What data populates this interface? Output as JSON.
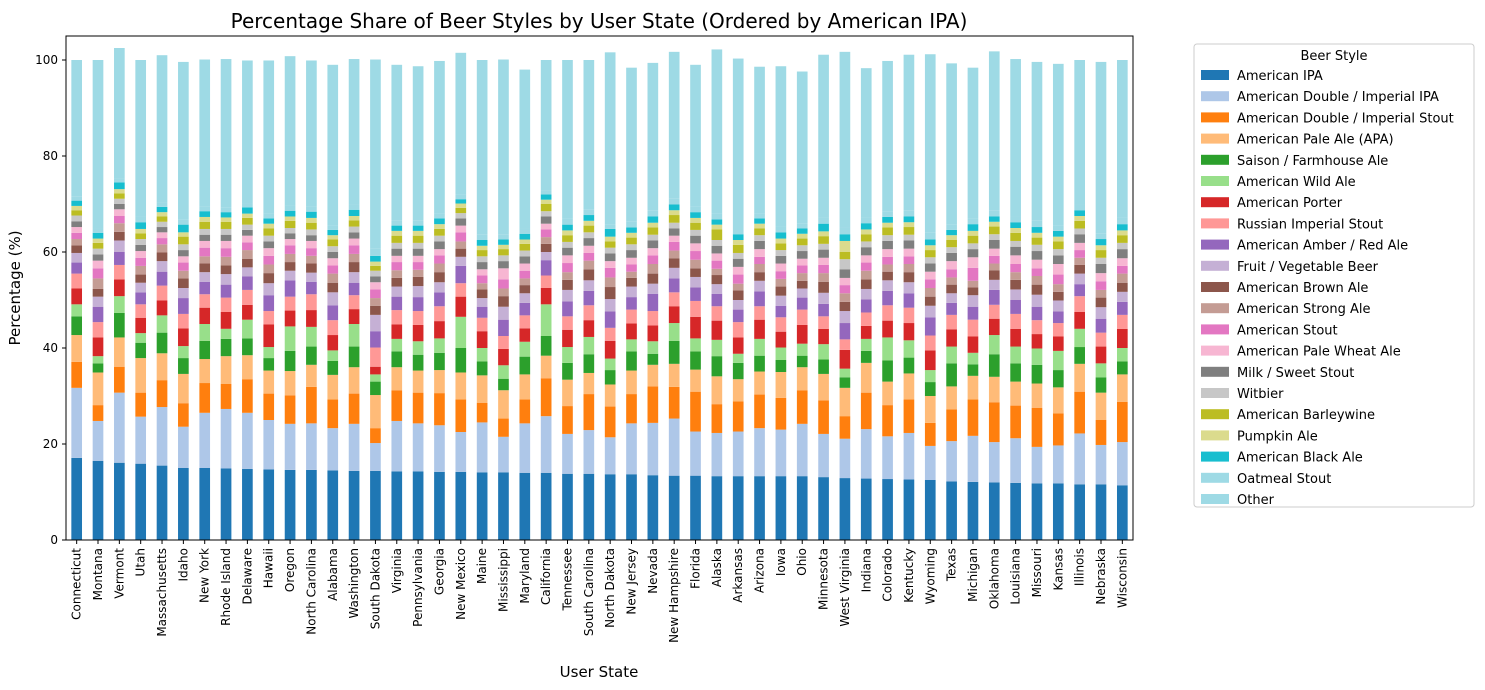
{
  "chart_data": {
    "type": "bar",
    "stacked": true,
    "title": "Percentage Share of Beer Styles by User State (Ordered by American IPA)",
    "xlabel": "User State",
    "ylabel": "Percentage (%)",
    "ylim": [
      0,
      105
    ],
    "yticks": [
      0,
      20,
      40,
      60,
      80,
      100
    ],
    "grid": false,
    "legend": {
      "title": "Beer Style",
      "placement": "outside-right"
    },
    "categories": [
      "Connecticut",
      "Montana",
      "Vermont",
      "Utah",
      "Massachusetts",
      "Idaho",
      "New York",
      "Rhode Island",
      "Delaware",
      "Hawaii",
      "Oregon",
      "North Carolina",
      "Alabama",
      "Washington",
      "South Dakota",
      "Virginia",
      "Pennsylvania",
      "Georgia",
      "New Mexico",
      "Maine",
      "Mississippi",
      "Maryland",
      "California",
      "Tennessee",
      "South Carolina",
      "North Dakota",
      "New Jersey",
      "Nevada",
      "New Hampshire",
      "Florida",
      "Alaska",
      "Arkansas",
      "Arizona",
      "Iowa",
      "Ohio",
      "Minnesota",
      "West Virginia",
      "Indiana",
      "Colorado",
      "Kentucky",
      "Wyoming",
      "Texas",
      "Michigan",
      "Oklahoma",
      "Louisiana",
      "Missouri",
      "Kansas",
      "Illinois",
      "Nebraska",
      "Wisconsin"
    ],
    "series": [
      {
        "name": "American IPA",
        "color": "#1f77b4",
        "values": [
          17.1,
          16.5,
          16.1,
          15.9,
          15.5,
          15.0,
          15.0,
          14.9,
          14.8,
          14.7,
          14.6,
          14.6,
          14.5,
          14.4,
          14.4,
          14.3,
          14.3,
          14.2,
          14.2,
          14.1,
          14.1,
          14.0,
          14.0,
          13.8,
          13.8,
          13.7,
          13.7,
          13.5,
          13.4,
          13.4,
          13.3,
          13.3,
          13.3,
          13.3,
          13.3,
          13.1,
          12.9,
          12.8,
          12.7,
          12.6,
          12.5,
          12.2,
          12.1,
          12.0,
          11.9,
          11.8,
          11.8,
          11.6,
          11.6,
          11.4
        ]
      },
      {
        "name": "American Double / Imperial IPA",
        "color": "#aec7e8",
        "values": [
          14.6,
          8.3,
          14.6,
          9.8,
          12.2,
          8.6,
          11.5,
          12.4,
          11.7,
          10.3,
          9.6,
          9.7,
          8.8,
          9.8,
          5.8,
          10.5,
          10.0,
          9.7,
          8.3,
          10.4,
          7.4,
          10.3,
          11.8,
          8.3,
          9.1,
          7.7,
          10.6,
          10.9,
          11.9,
          9.2,
          9.0,
          9.3,
          10.0,
          9.7,
          10.9,
          9.0,
          8.2,
          10.3,
          8.9,
          9.7,
          7.1,
          8.4,
          9.6,
          8.4,
          9.3,
          7.6,
          7.9,
          10.6,
          8.2,
          9.0
        ]
      },
      {
        "name": "American Double / Imperial Stout",
        "color": "#ff7f0e",
        "values": [
          5.4,
          3.3,
          5.4,
          5.0,
          5.6,
          4.9,
          6.2,
          5.2,
          7.0,
          5.5,
          5.9,
          7.6,
          6.0,
          6.3,
          3.1,
          6.4,
          6.4,
          6.7,
          6.8,
          4.1,
          3.8,
          5.0,
          7.9,
          5.8,
          7.5,
          6.4,
          6.1,
          7.6,
          6.6,
          8.3,
          6.0,
          6.3,
          7.0,
          6.6,
          7.0,
          7.0,
          4.7,
          7.6,
          6.5,
          7.0,
          4.8,
          6.6,
          7.6,
          8.3,
          6.8,
          8.1,
          6.7,
          8.7,
          5.2,
          8.4
        ]
      },
      {
        "name": "American Pale Ale (APA)",
        "color": "#ffbb78",
        "values": [
          5.6,
          6.8,
          6.1,
          7.2,
          5.6,
          6.1,
          5.0,
          5.8,
          5.0,
          4.8,
          5.1,
          4.6,
          5.1,
          5.5,
          6.9,
          4.8,
          4.6,
          4.8,
          5.6,
          5.7,
          5.9,
          5.2,
          4.7,
          5.5,
          4.4,
          4.6,
          4.9,
          4.5,
          4.8,
          4.6,
          5.8,
          4.6,
          4.8,
          5.4,
          4.8,
          5.5,
          5.9,
          6.2,
          4.9,
          5.4,
          5.6,
          4.8,
          4.9,
          5.3,
          5.0,
          5.1,
          5.4,
          5.8,
          5.7,
          5.7
        ]
      },
      {
        "name": "Saison / Farmhouse Ale",
        "color": "#2ca02c",
        "values": [
          3.9,
          1.9,
          5.1,
          3.2,
          4.3,
          3.3,
          3.8,
          3.6,
          3.5,
          2.6,
          4.2,
          3.8,
          2.9,
          4.3,
          2.8,
          3.3,
          3.3,
          3.6,
          5.1,
          2.9,
          2.4,
          3.7,
          4.1,
          3.5,
          3.9,
          3.0,
          4.0,
          2.3,
          4.8,
          3.8,
          4.2,
          3.4,
          3.3,
          2.5,
          2.4,
          3.0,
          2.2,
          2.5,
          4.4,
          3.3,
          2.9,
          4.8,
          2.4,
          4.7,
          3.8,
          3.9,
          3.6,
          3.5,
          3.2,
          2.7
        ]
      },
      {
        "name": "American Wild Ale",
        "color": "#98df8a",
        "values": [
          2.5,
          1.5,
          3.5,
          2.0,
          3.6,
          2.5,
          3.5,
          2.1,
          3.9,
          2.3,
          5.1,
          4.1,
          2.2,
          4.7,
          1.5,
          2.6,
          2.8,
          3.0,
          6.5,
          2.8,
          2.8,
          3.1,
          6.6,
          3.3,
          3.6,
          2.4,
          2.5,
          2.6,
          3.7,
          2.7,
          3.4,
          1.9,
          3.5,
          2.6,
          2.5,
          3.2,
          1.8,
          2.5,
          4.8,
          3.6,
          2.5,
          3.5,
          2.4,
          4.0,
          3.5,
          3.4,
          4.0,
          3.8,
          2.9,
          2.8
        ]
      },
      {
        "name": "American Porter",
        "color": "#d62728",
        "values": [
          3.3,
          3.9,
          3.5,
          3.2,
          3.1,
          3.7,
          3.4,
          3.5,
          3.1,
          4.7,
          3.3,
          3.5,
          3.2,
          3.1,
          1.6,
          3.0,
          3.4,
          3.6,
          4.2,
          3.5,
          3.4,
          2.8,
          3.4,
          3.6,
          3.5,
          3.7,
          3.3,
          3.3,
          3.5,
          4.5,
          4.0,
          3.4,
          4.0,
          3.3,
          3.9,
          3.2,
          3.9,
          2.7,
          3.5,
          3.6,
          4.1,
          3.6,
          3.4,
          3.4,
          3.7,
          3.0,
          3.0,
          3.5,
          3.5,
          4.0
        ]
      },
      {
        "name": "Russian Imperial Stout",
        "color": "#ff9896",
        "values": [
          3.1,
          3.2,
          3.0,
          2.8,
          3.1,
          3.0,
          2.8,
          3.0,
          3.1,
          2.8,
          2.9,
          3.3,
          3.1,
          2.9,
          4.0,
          3.0,
          2.9,
          3.1,
          2.8,
          2.8,
          2.7,
          2.7,
          2.6,
          2.8,
          3.1,
          2.7,
          2.9,
          3.0,
          2.9,
          3.3,
          3.0,
          3.2,
          2.8,
          3.0,
          3.2,
          2.6,
          2.2,
          2.8,
          3.2,
          3.2,
          3.1,
          3.0,
          3.5,
          2.9,
          3.1,
          2.9,
          2.8,
          3.3,
          2.9,
          2.9
        ]
      },
      {
        "name": "American Amber / Red Ale",
        "color": "#9467bd",
        "values": [
          2.3,
          3.2,
          2.7,
          2.5,
          2.9,
          3.3,
          2.6,
          2.7,
          2.8,
          3.3,
          3.4,
          2.6,
          3.1,
          2.6,
          3.4,
          2.8,
          2.9,
          2.9,
          3.6,
          2.3,
          3.4,
          2.6,
          3.2,
          3.1,
          3.0,
          3.4,
          2.6,
          3.6,
          2.9,
          2.8,
          2.6,
          2.6,
          3.1,
          2.4,
          2.5,
          2.6,
          3.4,
          2.7,
          3.0,
          3.0,
          3.8,
          2.5,
          2.7,
          3.1,
          2.9,
          2.8,
          2.4,
          2.5,
          2.9,
          2.7
        ]
      },
      {
        "name": "Fruit / Vegetable Beer",
        "color": "#c5b0d5",
        "values": [
          2.0,
          2.1,
          2.4,
          2.0,
          2.2,
          2.1,
          2.0,
          2.2,
          1.9,
          2.5,
          2.0,
          1.9,
          2.7,
          2.2,
          3.4,
          2.1,
          2.3,
          2.1,
          1.9,
          1.8,
          2.7,
          2.0,
          1.7,
          2.4,
          2.2,
          2.6,
          2.2,
          2.1,
          2.2,
          2.2,
          2.0,
          2.0,
          2.2,
          2.1,
          1.9,
          2.3,
          2.5,
          2.2,
          2.2,
          2.3,
          2.4,
          2.0,
          2.4,
          2.1,
          2.2,
          2.5,
          2.3,
          2.2,
          2.4,
          2.1
        ]
      },
      {
        "name": "American Brown Ale",
        "color": "#8c564b",
        "values": [
          1.6,
          1.6,
          1.8,
          1.7,
          1.8,
          2.0,
          1.8,
          1.8,
          1.8,
          2.1,
          1.8,
          1.9,
          2.0,
          2.1,
          1.9,
          1.8,
          1.9,
          2.1,
          1.7,
          1.8,
          2.2,
          1.7,
          1.7,
          2.1,
          2.3,
          2.5,
          1.8,
          2.1,
          2.0,
          1.8,
          1.9,
          2.0,
          1.8,
          1.9,
          1.6,
          2.3,
          1.9,
          2.0,
          1.8,
          2.1,
          1.9,
          1.8,
          1.6,
          2.0,
          2.0,
          2.1,
          1.8,
          1.8,
          2.0,
          1.9
        ]
      },
      {
        "name": "American Strong Ale",
        "color": "#c49c94",
        "values": [
          1.3,
          2.2,
          1.8,
          1.8,
          1.7,
          1.6,
          1.5,
          1.8,
          1.8,
          1.8,
          1.7,
          1.6,
          1.9,
          1.7,
          1.6,
          1.6,
          1.5,
          1.8,
          1.5,
          1.3,
          1.6,
          1.4,
          1.4,
          1.6,
          1.8,
          2.0,
          1.3,
          2.0,
          1.6,
          1.8,
          1.3,
          1.4,
          1.7,
          1.6,
          1.6,
          1.8,
          1.8,
          1.8,
          1.5,
          1.7,
          1.8,
          1.5,
          1.4,
          1.4,
          1.6,
          1.8,
          1.6,
          1.5,
          1.6,
          1.9
        ]
      },
      {
        "name": "American Stout",
        "color": "#e377c2",
        "values": [
          1.3,
          2.1,
          1.5,
          1.7,
          1.3,
          1.7,
          1.8,
          1.8,
          1.6,
          1.8,
          1.8,
          1.6,
          1.7,
          1.8,
          1.8,
          1.7,
          1.6,
          1.7,
          1.9,
          1.6,
          1.9,
          1.6,
          1.6,
          1.9,
          1.6,
          2.0,
          1.5,
          1.8,
          1.8,
          1.8,
          1.7,
          1.9,
          1.5,
          1.6,
          1.6,
          1.7,
          1.7,
          1.7,
          1.6,
          1.6,
          1.8,
          1.7,
          2.7,
          1.6,
          1.7,
          1.6,
          2.0,
          1.6,
          1.8,
          1.6
        ]
      },
      {
        "name": "American Pale Wheat Ale",
        "color": "#f7b6d2",
        "values": [
          1.2,
          1.6,
          1.4,
          1.4,
          1.2,
          1.3,
          1.4,
          1.5,
          1.4,
          1.6,
          1.3,
          1.5,
          1.5,
          1.4,
          1.5,
          1.3,
          1.3,
          1.3,
          1.4,
          1.3,
          2.3,
          1.5,
          1.2,
          1.6,
          1.5,
          1.4,
          1.4,
          1.5,
          1.3,
          1.6,
          1.5,
          1.6,
          1.6,
          1.6,
          1.4,
          1.5,
          1.5,
          1.5,
          1.6,
          1.6,
          1.6,
          1.7,
          2.2,
          1.5,
          1.8,
          1.8,
          2.2,
          1.5,
          1.7,
          1.6
        ]
      },
      {
        "name": "Milk / Sweet Stout",
        "color": "#7f7f7f",
        "values": [
          1.2,
          1.3,
          1.1,
          1.3,
          1.1,
          1.3,
          1.3,
          1.3,
          1.2,
          1.4,
          1.2,
          1.2,
          1.3,
          1.3,
          1.2,
          1.5,
          1.5,
          1.6,
          1.5,
          1.5,
          1.5,
          1.5,
          1.5,
          1.6,
          1.6,
          1.6,
          1.6,
          1.6,
          1.5,
          1.6,
          1.6,
          1.7,
          1.7,
          1.6,
          1.6,
          1.7,
          1.8,
          1.7,
          1.7,
          1.7,
          1.7,
          1.7,
          1.7,
          1.8,
          1.8,
          1.8,
          1.8,
          1.8,
          1.9,
          1.9
        ]
      },
      {
        "name": "Witbier",
        "color": "#c7c7c7",
        "values": [
          1.2,
          1.2,
          1.1,
          1.2,
          1.1,
          1.2,
          1.2,
          1.2,
          1.1,
          1.2,
          1.1,
          1.2,
          1.2,
          1.2,
          1.2,
          1.2,
          1.2,
          1.2,
          1.1,
          1.2,
          1.2,
          1.2,
          1.1,
          1.2,
          1.2,
          1.2,
          1.2,
          1.2,
          1.2,
          1.2,
          1.2,
          1.2,
          1.2,
          1.2,
          1.2,
          1.2,
          2.1,
          1.2,
          1.2,
          1.2,
          1.3,
          1.2,
          1.2,
          1.2,
          1.2,
          1.3,
          1.3,
          1.2,
          1.3,
          1.3
        ]
      },
      {
        "name": "American Barleywine",
        "color": "#bcbd22",
        "values": [
          1.1,
          1.2,
          1.1,
          1.2,
          1.1,
          1.6,
          1.5,
          1.5,
          1.4,
          1.5,
          1.5,
          1.4,
          1.4,
          1.3,
          1.0,
          1.5,
          1.5,
          1.4,
          1.1,
          1.3,
          1.3,
          1.4,
          1.5,
          1.4,
          1.4,
          1.3,
          1.4,
          1.5,
          1.6,
          1.5,
          2.2,
          1.7,
          1.4,
          1.4,
          1.4,
          1.6,
          1.5,
          1.5,
          1.6,
          1.6,
          1.5,
          1.5,
          1.6,
          1.6,
          1.7,
          1.5,
          1.6,
          1.6,
          1.6,
          1.6
        ]
      },
      {
        "name": "Pumpkin Ale",
        "color": "#dbdb8d",
        "values": [
          0.9,
          0.9,
          0.9,
          0.9,
          0.9,
          0.9,
          1.0,
          0.9,
          0.9,
          1.0,
          0.9,
          1.0,
          0.9,
          0.9,
          0.9,
          1.0,
          1.0,
          1.0,
          0.9,
          0.9,
          0.9,
          0.9,
          0.9,
          1.0,
          1.0,
          1.0,
          1.0,
          1.0,
          1.0,
          1.0,
          1.0,
          1.0,
          1.0,
          1.0,
          1.0,
          1.0,
          2.3,
          1.0,
          1.0,
          1.0,
          1.0,
          1.0,
          1.0,
          1.0,
          1.0,
          1.0,
          1.0,
          1.0,
          1.0,
          1.0
        ]
      },
      {
        "name": "American Black Ale",
        "color": "#17becf",
        "values": [
          1.1,
          1.2,
          1.4,
          1.4,
          1.1,
          1.6,
          1.2,
          1.1,
          1.3,
          1.1,
          1.2,
          1.3,
          1.1,
          1.3,
          1.2,
          1.1,
          1.1,
          1.2,
          0.9,
          1.2,
          1.1,
          1.2,
          1.1,
          1.2,
          1.2,
          1.6,
          1.1,
          1.3,
          1.2,
          1.2,
          1.1,
          1.2,
          1.1,
          1.3,
          1.1,
          1.6,
          1.4,
          1.3,
          1.2,
          1.2,
          1.2,
          1.1,
          1.4,
          1.1,
          1.2,
          1.2,
          1.2,
          1.2,
          1.3,
          1.3
        ]
      },
      {
        "name": "Oatmeal Stout",
        "color": "#9edae5",
        "values": [
          0.8,
          0.9,
          0.9,
          1.1,
          1.0,
          1.0,
          1.0,
          1.0,
          0.9,
          1.0,
          1.1,
          1.1,
          1.0,
          1.0,
          1.5,
          1.1,
          1.0,
          1.1,
          0.9,
          1.2,
          1.1,
          1.1,
          0.9,
          1.2,
          1.2,
          1.0,
          1.2,
          1.2,
          1.2,
          1.1,
          1.3,
          1.3,
          1.1,
          1.2,
          1.1,
          1.3,
          1.5,
          1.2,
          1.2,
          1.3,
          1.5,
          1.2,
          1.2,
          1.2,
          1.2,
          1.3,
          1.2,
          1.2,
          1.2,
          1.3
        ]
      },
      {
        "name": "Other",
        "color": "#9edae5",
        "values": [
          28.5,
          35.1,
          27.1,
          32.7,
          30.6,
          32.9,
          30.6,
          30.9,
          29.7,
          31.9,
          31.1,
          30.4,
          33.4,
          30.4,
          39.4,
          32.4,
          32.2,
          31.7,
          29.6,
          36.3,
          36.4,
          33.1,
          27.1,
          33.1,
          31.1,
          35.8,
          32.1,
          30.8,
          30.6,
          29.6,
          34.1,
          35.3,
          30.5,
          33.4,
          31.6,
          33.9,
          36.5,
          31.1,
          31.3,
          32.4,
          37.1,
          33.5,
          31.4,
          33.2,
          32.8,
          33.1,
          33.6,
          30.1,
          35.7,
          32.9
        ]
      }
    ]
  }
}
